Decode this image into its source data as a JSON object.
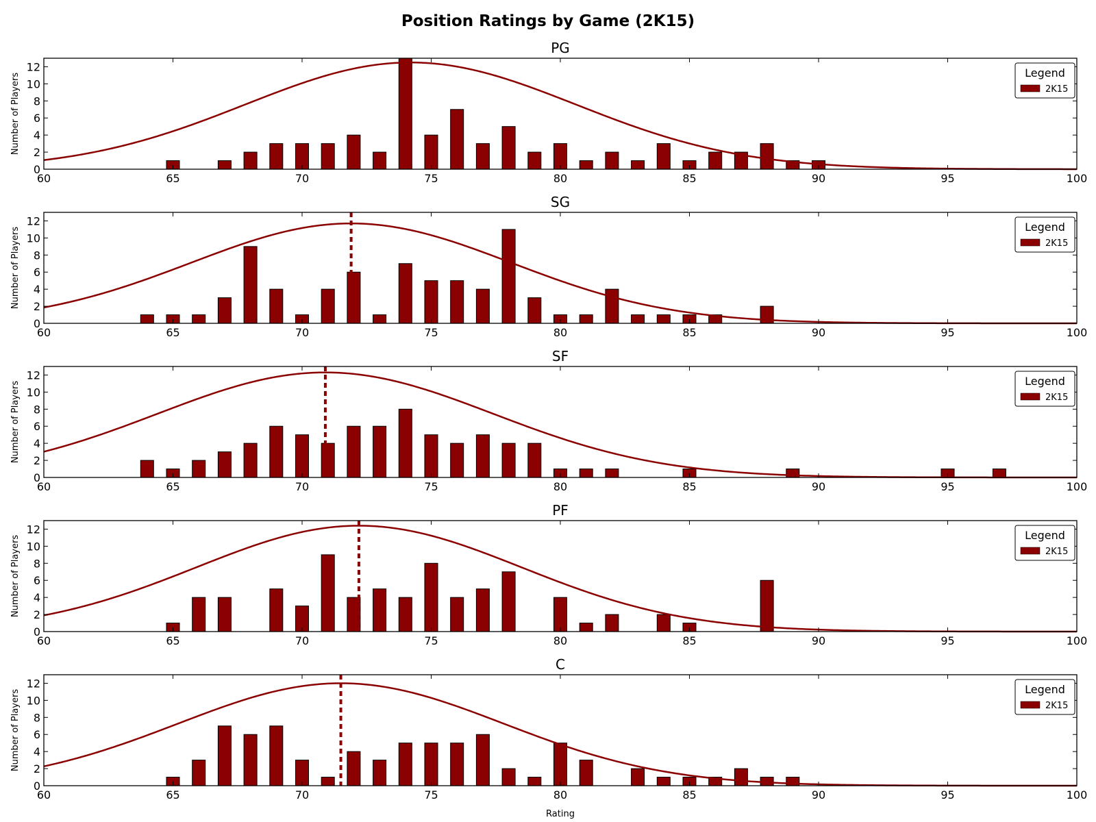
{
  "figure": {
    "title": "Position Ratings by Game (2K15)",
    "xlabel": "Rating"
  },
  "colors": {
    "bar_fill": "#8b0000",
    "bar_edge": "#000000",
    "curve": "#8b0000",
    "mean_line": "#8b0000",
    "axes": "#000000"
  },
  "chart_data": [
    {
      "type": "bar",
      "title": "PG",
      "ylabel": "Number of Players",
      "xlim": [
        60,
        100
      ],
      "ylim": [
        0,
        13
      ],
      "xticks": [
        60,
        65,
        70,
        75,
        80,
        85,
        90,
        95,
        100
      ],
      "yticks": [
        0,
        2,
        4,
        6,
        8,
        10,
        12
      ],
      "legend": {
        "title": "Legend",
        "entries": [
          "2K15"
        ],
        "placement": "top-right"
      },
      "x": [
        65,
        66,
        67,
        68,
        69,
        70,
        71,
        72,
        73,
        74,
        75,
        76,
        77,
        78,
        79,
        80,
        81,
        82,
        83,
        84,
        85,
        86,
        87,
        88,
        89,
        90
      ],
      "values": [
        1,
        0,
        1,
        2,
        3,
        3,
        3,
        4,
        2,
        13,
        4,
        7,
        3,
        5,
        2,
        3,
        1,
        2,
        1,
        3,
        1,
        2,
        2,
        3,
        1,
        1
      ],
      "series": [
        {
          "name": "2K15",
          "values": [
            1,
            0,
            1,
            2,
            3,
            3,
            3,
            4,
            2,
            13,
            4,
            7,
            3,
            5,
            2,
            3,
            1,
            2,
            1,
            3,
            1,
            2,
            2,
            3,
            1,
            1
          ]
        }
      ],
      "fit_curve": {
        "mean": 74.2,
        "std": 6.4,
        "peak": 12.5
      }
    },
    {
      "type": "bar",
      "title": "SG",
      "ylabel": "Number of Players",
      "xlim": [
        60,
        100
      ],
      "ylim": [
        0,
        13
      ],
      "xticks": [
        60,
        65,
        70,
        75,
        80,
        85,
        90,
        95,
        100
      ],
      "yticks": [
        0,
        2,
        4,
        6,
        8,
        10,
        12
      ],
      "legend": {
        "title": "Legend",
        "entries": [
          "2K15"
        ],
        "placement": "top-right"
      },
      "x": [
        64,
        65,
        66,
        67,
        68,
        69,
        70,
        71,
        72,
        73,
        74,
        75,
        76,
        77,
        78,
        79,
        80,
        81,
        82,
        83,
        84,
        85,
        86,
        87,
        88
      ],
      "values": [
        1,
        1,
        1,
        3,
        9,
        4,
        1,
        4,
        6,
        1,
        7,
        5,
        5,
        4,
        11,
        3,
        1,
        1,
        4,
        1,
        1,
        1,
        1,
        0,
        2
      ],
      "series": [
        {
          "name": "2K15",
          "values": [
            1,
            1,
            1,
            3,
            9,
            4,
            1,
            4,
            6,
            1,
            7,
            5,
            5,
            4,
            11,
            3,
            1,
            1,
            4,
            1,
            1,
            1,
            1,
            0,
            2
          ]
        }
      ],
      "fit_curve": {
        "mean": 71.9,
        "std": 6.2,
        "peak": 11.7
      },
      "mean_line": 71.9
    },
    {
      "type": "bar",
      "title": "SF",
      "ylabel": "Number of Players",
      "xlim": [
        60,
        100
      ],
      "ylim": [
        0,
        13
      ],
      "xticks": [
        60,
        65,
        70,
        75,
        80,
        85,
        90,
        95,
        100
      ],
      "yticks": [
        0,
        2,
        4,
        6,
        8,
        10,
        12
      ],
      "legend": {
        "title": "Legend",
        "entries": [
          "2K15"
        ],
        "placement": "top-right"
      },
      "x": [
        64,
        65,
        66,
        67,
        68,
        69,
        70,
        71,
        72,
        73,
        74,
        75,
        76,
        77,
        78,
        79,
        80,
        81,
        82,
        83,
        84,
        85,
        86,
        87,
        88,
        89,
        90,
        91,
        92,
        93,
        94,
        95,
        96,
        97
      ],
      "values": [
        2,
        1,
        2,
        3,
        4,
        6,
        5,
        4,
        6,
        6,
        8,
        5,
        4,
        5,
        4,
        4,
        1,
        1,
        1,
        0,
        0,
        1,
        0,
        0,
        0,
        1,
        0,
        0,
        0,
        0,
        0,
        1,
        0,
        1
      ],
      "series": [
        {
          "name": "2K15",
          "values": [
            2,
            1,
            2,
            3,
            4,
            6,
            5,
            4,
            6,
            6,
            8,
            5,
            4,
            5,
            4,
            4,
            1,
            1,
            1,
            0,
            0,
            1,
            0,
            0,
            0,
            1,
            0,
            0,
            0,
            0,
            0,
            1,
            0,
            1
          ]
        }
      ],
      "fit_curve": {
        "mean": 70.9,
        "std": 6.5,
        "peak": 12.3
      },
      "mean_line": 70.9
    },
    {
      "type": "bar",
      "title": "PF",
      "ylabel": "Number of Players",
      "xlim": [
        60,
        100
      ],
      "ylim": [
        0,
        13
      ],
      "xticks": [
        60,
        65,
        70,
        75,
        80,
        85,
        90,
        95,
        100
      ],
      "yticks": [
        0,
        2,
        4,
        6,
        8,
        10,
        12
      ],
      "legend": {
        "title": "Legend",
        "entries": [
          "2K15"
        ],
        "placement": "top-right"
      },
      "x": [
        65,
        66,
        67,
        68,
        69,
        70,
        71,
        72,
        73,
        74,
        75,
        76,
        77,
        78,
        79,
        80,
        81,
        82,
        83,
        84,
        85,
        86,
        87,
        88
      ],
      "values": [
        1,
        4,
        4,
        0,
        5,
        3,
        9,
        4,
        5,
        4,
        8,
        4,
        5,
        7,
        0,
        4,
        1,
        2,
        0,
        2,
        1,
        0,
        0,
        6
      ],
      "series": [
        {
          "name": "2K15",
          "values": [
            1,
            4,
            4,
            0,
            5,
            3,
            9,
            4,
            5,
            4,
            8,
            4,
            5,
            7,
            0,
            4,
            1,
            2,
            0,
            2,
            1,
            0,
            0,
            6
          ]
        }
      ],
      "fit_curve": {
        "mean": 72.2,
        "std": 6.3,
        "peak": 12.4
      },
      "mean_line": 72.2
    },
    {
      "type": "bar",
      "title": "C",
      "ylabel": "Number of Players",
      "xlim": [
        60,
        100
      ],
      "ylim": [
        0,
        13
      ],
      "xticks": [
        60,
        65,
        70,
        75,
        80,
        85,
        90,
        95,
        100
      ],
      "yticks": [
        0,
        2,
        4,
        6,
        8,
        10,
        12
      ],
      "legend": {
        "title": "Legend",
        "entries": [
          "2K15"
        ],
        "placement": "top-right"
      },
      "x": [
        65,
        66,
        67,
        68,
        69,
        70,
        71,
        72,
        73,
        74,
        75,
        76,
        77,
        78,
        79,
        80,
        81,
        82,
        83,
        84,
        85,
        86,
        87,
        88,
        89
      ],
      "values": [
        1,
        3,
        7,
        6,
        7,
        3,
        1,
        4,
        3,
        5,
        5,
        5,
        6,
        2,
        1,
        5,
        3,
        0,
        2,
        1,
        1,
        1,
        2,
        1,
        1
      ],
      "series": [
        {
          "name": "2K15",
          "values": [
            1,
            3,
            7,
            6,
            7,
            3,
            1,
            4,
            3,
            5,
            5,
            5,
            6,
            2,
            1,
            5,
            3,
            0,
            2,
            1,
            1,
            1,
            2,
            1,
            1
          ]
        }
      ],
      "fit_curve": {
        "mean": 71.5,
        "std": 6.3,
        "peak": 12.0
      },
      "mean_line": 71.5
    }
  ]
}
